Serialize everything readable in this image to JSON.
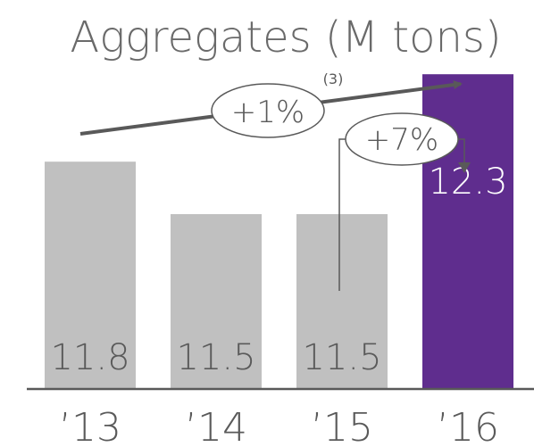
{
  "chart_data": {
    "type": "bar",
    "title": "Aggregates (M tons)",
    "categories": [
      "’13",
      "’14",
      "’15",
      "’16"
    ],
    "values": [
      11.8,
      11.5,
      11.5,
      12.3
    ],
    "value_labels": [
      "11.8",
      "11.5",
      "11.5",
      "12.3"
    ],
    "ylim": [
      10.5,
      12.5
    ],
    "grid": false,
    "legend": "none",
    "colors": {
      "bar": "#c0c0c0",
      "highlight_bar": "#5f2d8e",
      "label_on_gray": "#5a5a5a",
      "label_on_highlight": "#ffffff",
      "annotation": "#595959",
      "axis": "#595959"
    },
    "highlight_index": 3,
    "annotations": {
      "overall_growth": "+1%",
      "overall_growth_footnote": "(3)",
      "yoy_growth": "+7%"
    }
  }
}
